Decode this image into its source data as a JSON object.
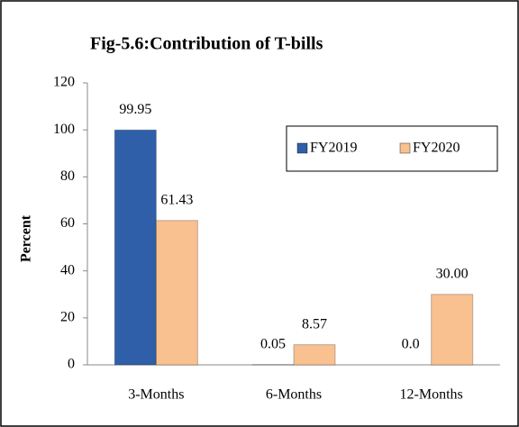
{
  "chart_data": {
    "type": "bar",
    "title": "Fig-5.6:Contribution of T-bills",
    "y_label": "Percent",
    "categories": [
      "3-Months",
      "6-Months",
      "12-Months"
    ],
    "series": [
      {
        "name": "FY2019",
        "color": "#2f5fa8",
        "values": [
          99.95,
          0.05,
          0.0
        ],
        "value_labels": [
          "99.95",
          "0.05",
          "0.0"
        ]
      },
      {
        "name": "FY2020",
        "color": "#f9c090",
        "values": [
          61.43,
          8.57,
          30.0
        ],
        "value_labels": [
          "61.43",
          "8.57",
          "30.00"
        ]
      }
    ],
    "ylim": [
      0,
      120
    ],
    "yticks": [
      0,
      20,
      40,
      60,
      80,
      100,
      120
    ],
    "grid": false,
    "legend": "upper right"
  }
}
